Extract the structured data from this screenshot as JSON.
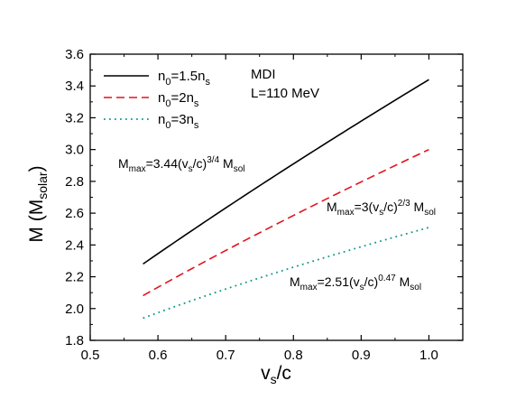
{
  "chart_data": {
    "type": "line",
    "xlabel": {
      "main": "v",
      "sub": "s",
      "tail": "/c"
    },
    "ylabel": {
      "main": "M (M",
      "sub": "solar",
      "tail": ")"
    },
    "xlim": [
      0.5,
      1.05
    ],
    "ylim": [
      1.8,
      3.6
    ],
    "x_ticks": [
      "0.5",
      "0.6",
      "0.7",
      "0.8",
      "0.9",
      "1.0"
    ],
    "y_ticks": [
      "1.8",
      "2.0",
      "2.2",
      "2.4",
      "2.6",
      "2.8",
      "3.0",
      "3.2",
      "3.4",
      "3.6"
    ],
    "series": [
      {
        "name": {
          "main": "n",
          "sub1": "0",
          "mid": "=1.5n",
          "sub2": "s"
        },
        "color": "#000000",
        "dash": "solid",
        "coef": 3.44,
        "exponent": 0.75,
        "x_range": [
          0.578,
          1.0
        ]
      },
      {
        "name": {
          "main": "n",
          "sub1": "0",
          "mid": "=2n",
          "sub2": "s"
        },
        "color": "#e0141e",
        "dash": "dashed",
        "coef": 3.0,
        "exponent": 0.6667,
        "x_range": [
          0.578,
          1.0
        ]
      },
      {
        "name": {
          "main": "n",
          "sub1": "0",
          "mid": "=3n",
          "sub2": "s"
        },
        "color": "#109a8a",
        "dash": "dotted",
        "coef": 2.51,
        "exponent": 0.47,
        "x_range": [
          0.578,
          1.0
        ]
      }
    ],
    "legend_placement": "top-left",
    "info": [
      "MDI",
      "L=110 MeV"
    ],
    "annotations": [
      {
        "pre": "M",
        "pre_sub": "max",
        "mid": "=3.44(v",
        "mid_sub": "s",
        "close": "/c)",
        "exp": "3/4",
        "post": " M",
        "post_sub": "sol"
      },
      {
        "pre": "M",
        "pre_sub": "max",
        "mid": "=3(v",
        "mid_sub": "s",
        "close": "/c)",
        "exp": "2/3",
        "post": " M",
        "post_sub": "sol"
      },
      {
        "pre": "M",
        "pre_sub": "max",
        "mid": "=2.51(v",
        "mid_sub": "s",
        "close": "/c)",
        "exp": "0.47",
        "post": " M",
        "post_sub": "sol"
      }
    ]
  }
}
